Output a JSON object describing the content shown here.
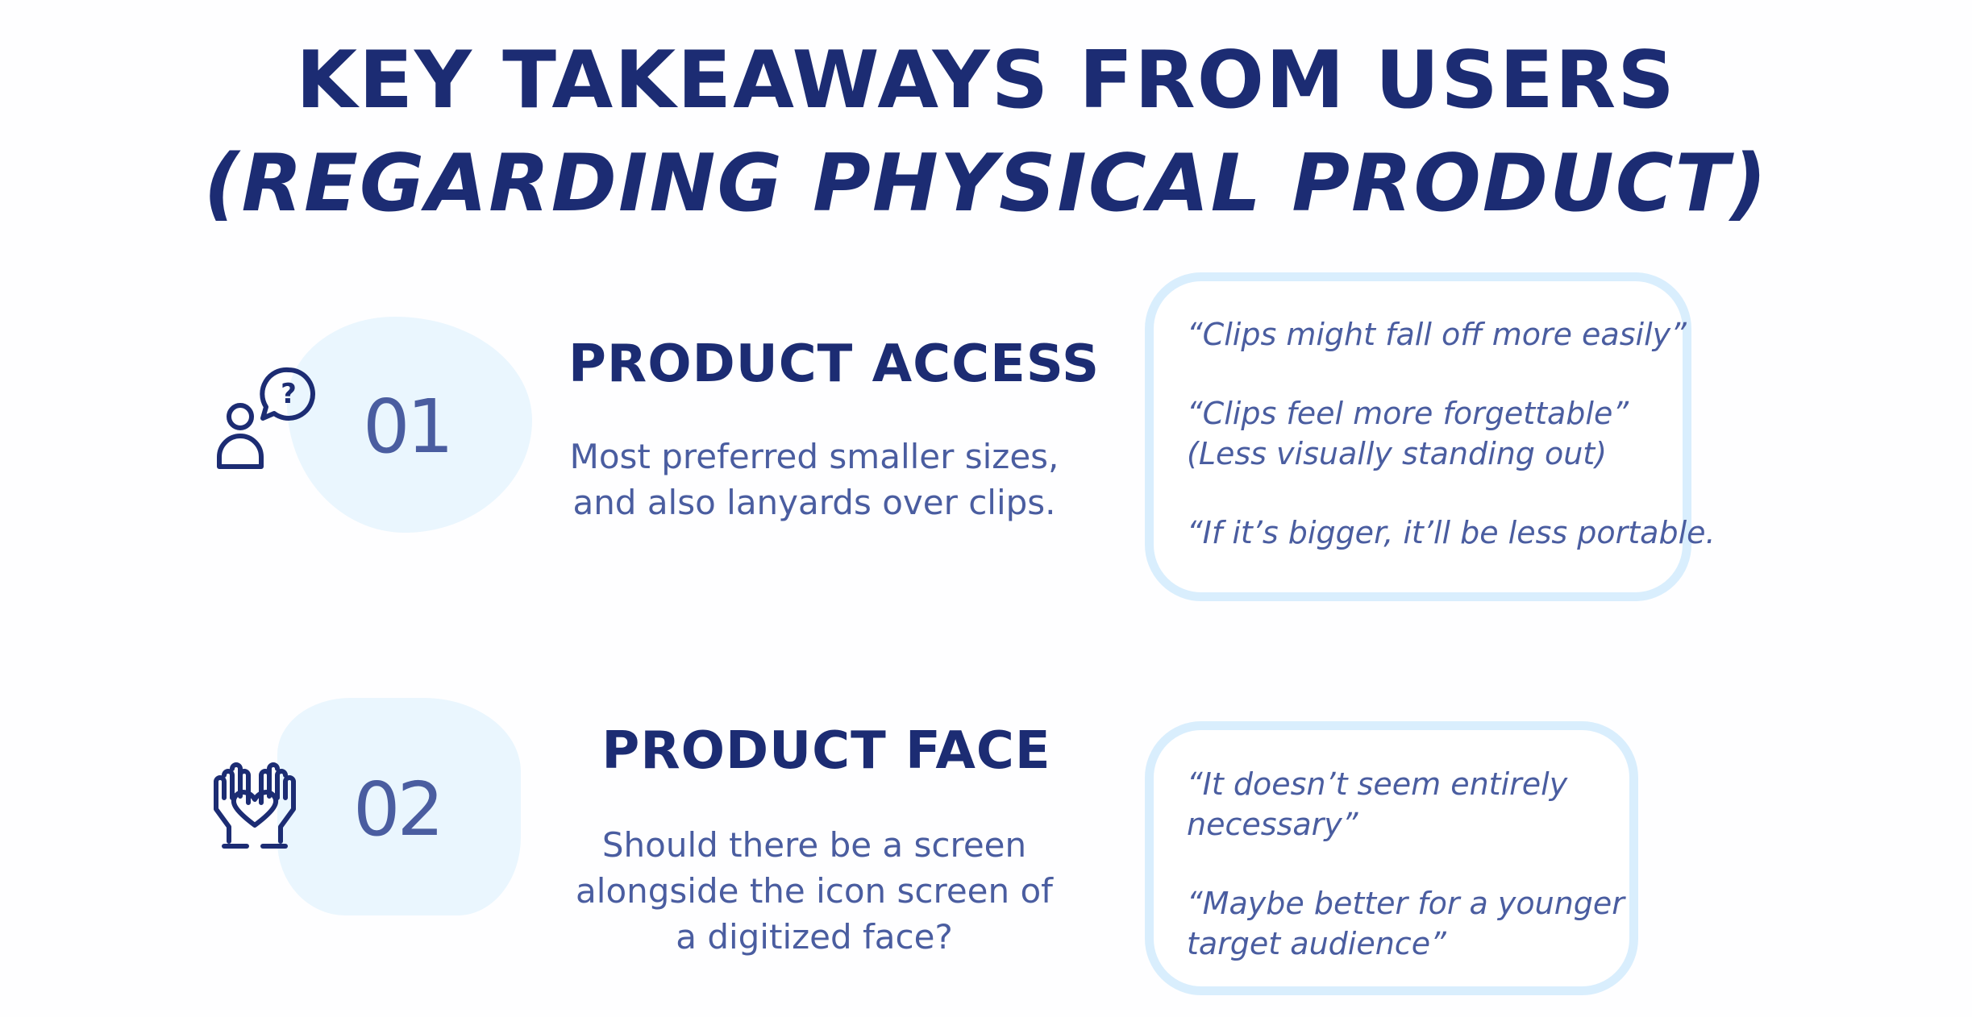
{
  "title": {
    "line1": "KEY TAKEAWAYS FROM USERS",
    "line2": "(REGARDING PHYSICAL PRODUCT)"
  },
  "sections": [
    {
      "number": "01",
      "icon": "user-question-icon",
      "heading": "PRODUCT ACCESS",
      "description_lines": [
        "Most preferred smaller sizes,",
        "and also lanyards over clips."
      ],
      "quotes": [
        "“Clips might fall off more easily”",
        "“Clips feel more forgettable”",
        "(Less visually standing out)",
        "“If it’s bigger, it’ll be less portable."
      ]
    },
    {
      "number": "02",
      "icon": "hands-heart-icon",
      "heading": "PRODUCT FACE",
      "description_lines": [
        "Should there be a screen",
        "alongside the icon screen of",
        "a digitized face?"
      ],
      "quotes": [
        "“It doesn’t seem entirely",
        "necessary”",
        "“Maybe better for a younger",
        "target audience”"
      ]
    }
  ],
  "colors": {
    "primary": "#1c2c73",
    "secondary": "#4a5da0",
    "blob": "#eaf6fe",
    "quote_border": "#d9eefd"
  }
}
